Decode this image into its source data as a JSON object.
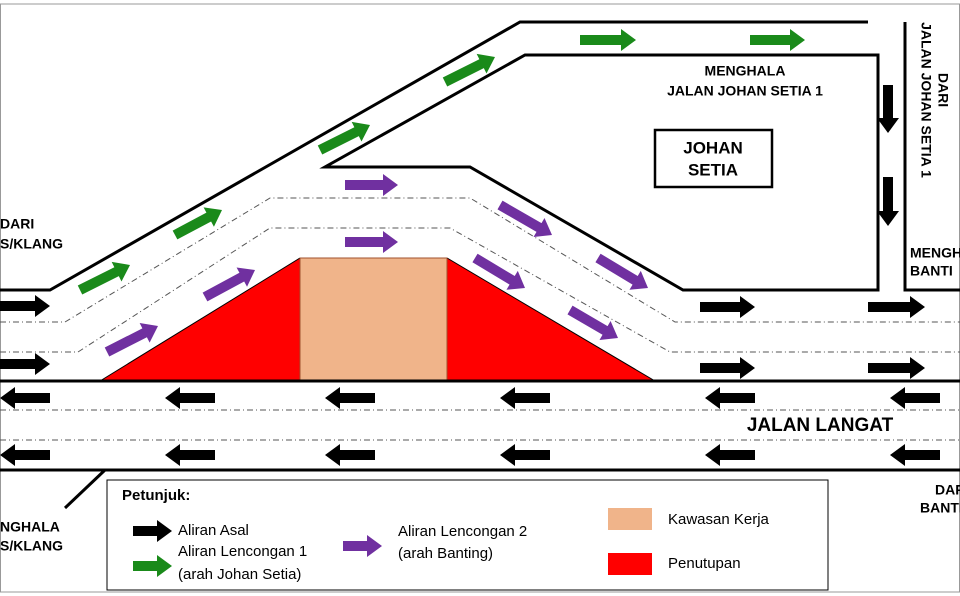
{
  "map_labels": {
    "left_from": [
      "DARI",
      "S/KLANG"
    ],
    "top_to": [
      "MENGHALA",
      "JALAN JOHAN SETIA 1"
    ],
    "site": [
      "JOHAN",
      "SETIA"
    ],
    "top_from": [
      "DARI",
      "JALAN JOHAN SETIA 1"
    ],
    "right_to": [
      "MENGH",
      "BANTI"
    ],
    "main_road": "JALAN LANGAT",
    "right_from": [
      "DAR",
      "BANTI"
    ],
    "left_to": [
      "NGHALA",
      "S/KLANG"
    ]
  },
  "legend": {
    "title": "Petunjuk:",
    "original": "Aliran Asal",
    "detour1": [
      "Aliran Lencongan 1",
      "(arah Johan Setia)"
    ],
    "detour2": [
      "Aliran Lencongan 2",
      "(arah Banting)"
    ],
    "work_area": "Kawasan Kerja",
    "closure": "Penutupan"
  }
}
